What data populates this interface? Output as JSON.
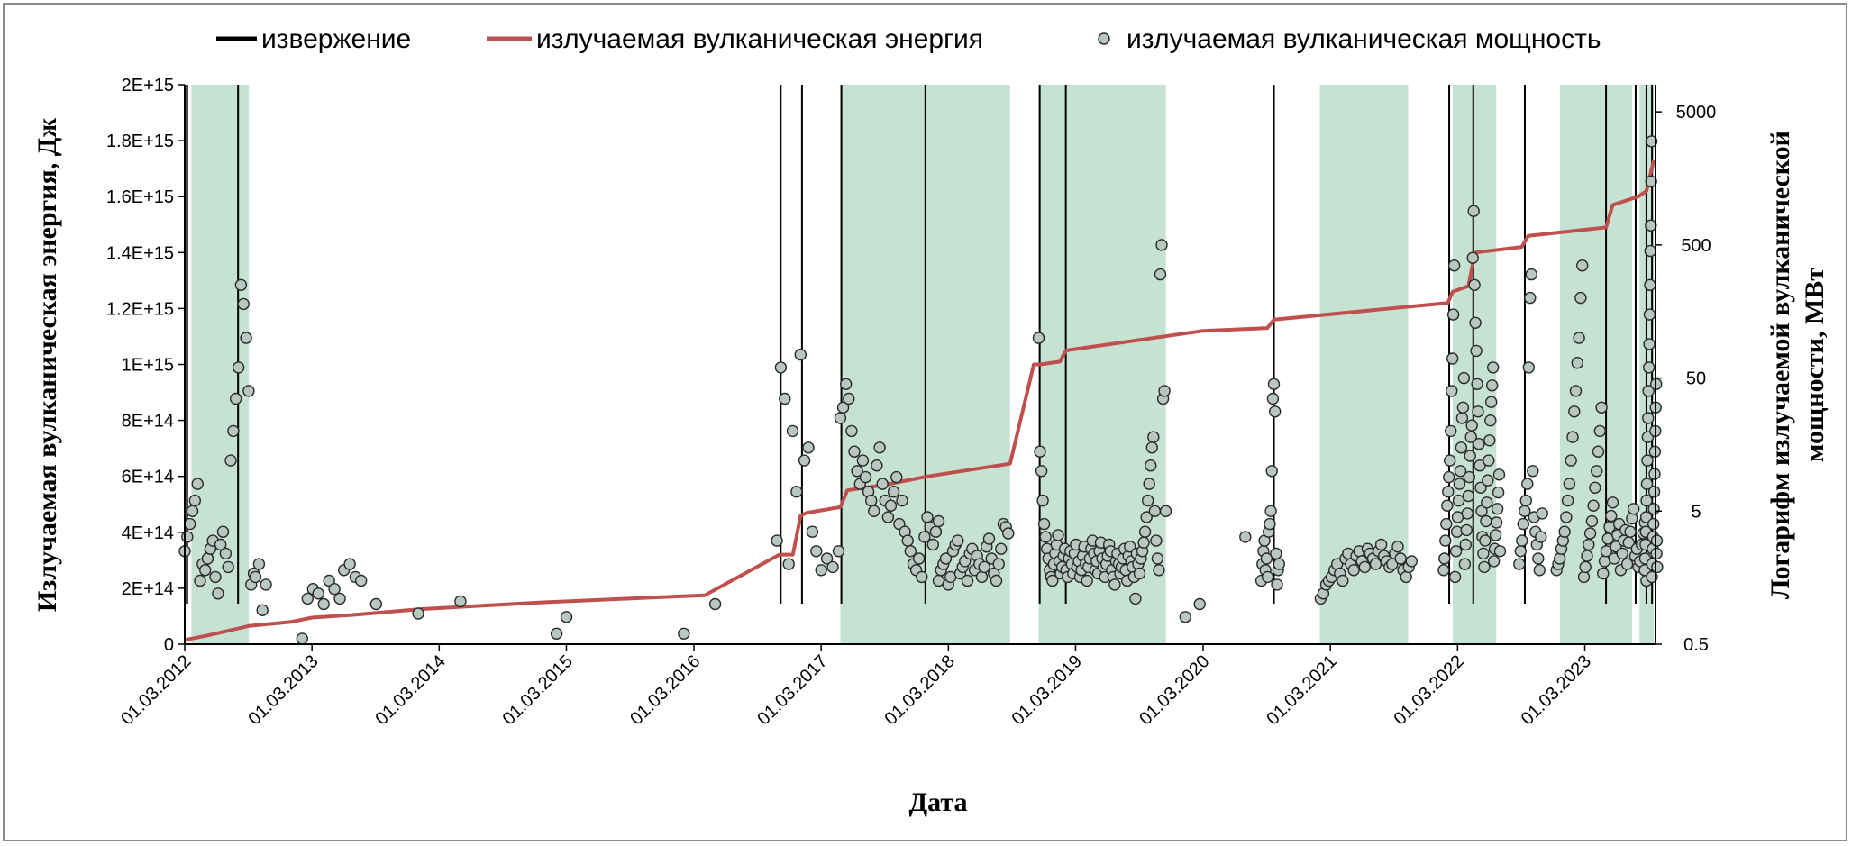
{
  "chart_data": {
    "type": "line",
    "title": "",
    "xlabel": "Дата",
    "ylabel": "Излучаемая вулканическая энергия, Дж",
    "y2label_lines": [
      "Логарифм излучаемой вулканической",
      "мощности, МВт"
    ],
    "x_ticks": [
      "01.03.2012",
      "01.03.2013",
      "01.03.2014",
      "01.03.2015",
      "01.03.2016",
      "01.03.2017",
      "01.03.2018",
      "01.03.2019",
      "01.03.2020",
      "01.03.2021",
      "01.03.2022",
      "01.03.2023"
    ],
    "y_ticks": [
      "0",
      "2E+14",
      "4E+14",
      "6E+14",
      "8E+14",
      "1E+15",
      "1.2E+15",
      "1.4E+15",
      "1.6E+15",
      "1.8E+15",
      "2E+15"
    ],
    "y2_ticks": [
      "0.5",
      "5",
      "50",
      "500",
      "5000"
    ],
    "xlim": [
      "2012-03-01",
      "2023-09-20"
    ],
    "ylim": [
      0,
      2000000000000000.0
    ],
    "y2lim": [
      0.5,
      8000
    ],
    "y2_scale": "log",
    "legend": {
      "position": "top",
      "items": [
        {
          "label": "извержение",
          "kind": "vline",
          "color": "#000000"
        },
        {
          "label": "излучаемая вулканическая энергия",
          "kind": "line",
          "color": "#c0504d"
        },
        {
          "label": "излучаемая вулканическая мощность",
          "kind": "marker",
          "color": "#b8c8c0"
        }
      ]
    },
    "colors": {
      "energy": "#c0504d",
      "eruption": "#000000",
      "period": "#c6e2d3",
      "marker_fill": "#b8c8c0",
      "marker_edge": "#2a2a2a"
    },
    "shaded_periods": [
      [
        "2012-03-20",
        "2012-09-01"
      ],
      [
        "2017-04-25",
        "2018-08-25"
      ],
      [
        "2018-11-15",
        "2019-11-15"
      ],
      [
        "2021-01-30",
        "2021-10-10"
      ],
      [
        "2022-02-15",
        "2022-06-20"
      ],
      [
        "2022-12-20",
        "2023-07-15"
      ],
      [
        "2023-08-05",
        "2023-09-15"
      ]
    ],
    "eruptions": [
      "2012-03-02",
      "2012-03-08",
      "2012-08-01",
      "2016-11-05",
      "2017-01-05",
      "2017-04-28",
      "2017-12-25",
      "2018-11-18",
      "2019-02-01",
      "2020-09-20",
      "2022-02-05",
      "2022-04-15",
      "2022-09-10",
      "2023-05-01",
      "2023-07-25",
      "2023-08-25",
      "2023-09-10"
    ],
    "energy_series": {
      "name": "излучаемая вулканическая энергия",
      "x": [
        "2012-03-01",
        "2012-05-01",
        "2012-09-01",
        "2013-01-01",
        "2013-03-01",
        "2013-07-01",
        "2014-01-01",
        "2015-01-01",
        "2016-04-01",
        "2016-11-01",
        "2016-12-10",
        "2017-01-01",
        "2017-01-20",
        "2017-04-25",
        "2017-05-15",
        "2017-09-01",
        "2018-01-01",
        "2018-08-25",
        "2018-11-01",
        "2018-11-20",
        "2019-01-15",
        "2019-02-01",
        "2020-03-01",
        "2020-09-01",
        "2020-09-20",
        "2022-02-01",
        "2022-02-15",
        "2022-04-01",
        "2022-04-20",
        "2022-09-01",
        "2022-09-20",
        "2023-05-01",
        "2023-05-20",
        "2023-08-01",
        "2023-08-25",
        "2023-09-15"
      ],
      "y": [
        15000000000000.0,
        30000000000000.0,
        65000000000000.0,
        80000000000000.0,
        95000000000000.0,
        105000000000000.0,
        125000000000000.0,
        150000000000000.0,
        175000000000000.0,
        320000000000000.0,
        320000000000000.0,
        460000000000000.0,
        470000000000000.0,
        490000000000000.0,
        550000000000000.0,
        570000000000000.0,
        600000000000000.0,
        645000000000000.0,
        1000000000000000.0,
        1000000000000000.0,
        1010000000000000.0,
        1050000000000000.0,
        1120000000000000.0,
        1130000000000000.0,
        1160000000000000.0,
        1220000000000000.0,
        1260000000000000.0,
        1280000000000000.0,
        1400000000000000.0,
        1420000000000000.0,
        1460000000000000.0,
        1490000000000000.0,
        1570000000000000.0,
        1600000000000000.0,
        1620000000000000.0,
        1730000000000000.0
      ]
    },
    "power_series": {
      "name": "излучаемая вулканическая мощность",
      "clusters": [
        {
          "start": "2012-03-01",
          "end": "2012-09-15",
          "mw": [
            2.5,
            3.2,
            4.0,
            5.0,
            6.0,
            8.0,
            1.5,
            2.0,
            1.8,
            2.2,
            2.6,
            3.0,
            1.6,
            1.2,
            2.8,
            3.5,
            2.4,
            1.9,
            12,
            20,
            35,
            60,
            250,
            180,
            100,
            40,
            1.4,
            1.7
          ]
        },
        {
          "start": "2012-09-20",
          "end": "2012-10-20",
          "mw": [
            1.6,
            2.0,
            0.9,
            1.4
          ]
        },
        {
          "start": "2013-02-01",
          "end": "2013-05-20",
          "mw": [
            0.55,
            1.1,
            1.3,
            1.2,
            1.0,
            1.5,
            1.3,
            1.1
          ]
        },
        {
          "start": "2013-06-01",
          "end": "2013-07-20",
          "mw": [
            1.8,
            2.0,
            1.6,
            1.5
          ]
        },
        {
          "start": "2013-09-01",
          "end": "2014-05-01",
          "mw": [
            1.0,
            0.85,
            1.05
          ]
        },
        {
          "start": "2015-02-01",
          "end": "2015-03-01",
          "mw": [
            0.6,
            0.8
          ]
        },
        {
          "start": "2016-02-01",
          "end": "2016-05-01",
          "mw": [
            0.6,
            1.0
          ]
        },
        {
          "start": "2016-10-25",
          "end": "2017-02-15",
          "mw": [
            3.0,
            60,
            35,
            2.0,
            20,
            7.0,
            75,
            12,
            15,
            3.5,
            2.5
          ]
        },
        {
          "start": "2017-03-01",
          "end": "2017-04-20",
          "mw": [
            1.8,
            2.2,
            1.9,
            2.5
          ]
        },
        {
          "start": "2017-04-25",
          "end": "2018-02-01",
          "mw": [
            25,
            30,
            45,
            35,
            20,
            14,
            10,
            8,
            12,
            9,
            7,
            6,
            5,
            11,
            15,
            8,
            6,
            4.5,
            5.5,
            7,
            9,
            4,
            6,
            3.5,
            3,
            2.5,
            2,
            1.8,
            2.2,
            1.6,
            3.2,
            4.5,
            3.8,
            2.8,
            3.5,
            4.2
          ]
        },
        {
          "start": "2018-02-01",
          "end": "2018-08-20",
          "mw": [
            1.5,
            1.8,
            2.0,
            2.2,
            1.4,
            1.6,
            2.5,
            2.8,
            3.0,
            1.7,
            1.9,
            2.1,
            1.5,
            2.4,
            2.6,
            1.8,
            2.3,
            2.0,
            1.6,
            1.9,
            2.7,
            3.1,
            2.2,
            1.7,
            1.5,
            2.0,
            2.6,
            4.0,
            3.8,
            3.4
          ]
        },
        {
          "start": "2018-11-15",
          "end": "2019-11-15",
          "mw": [
            100,
            14,
            10,
            6,
            4,
            3.2,
            2.6,
            2.2,
            1.8,
            1.6,
            1.5,
            2.0,
            2.4,
            2.8,
            3.3,
            2.1,
            1.7,
            1.9,
            2.3,
            2.6,
            1.8,
            1.6,
            2.2,
            2.5,
            2.0,
            1.7,
            2.4,
            2.8,
            1.9,
            2.1,
            1.6,
            1.8,
            2.3,
            2.7,
            2.0,
            1.5,
            1.9,
            2.2,
            2.6,
            3.0,
            2.4,
            1.8,
            2.1,
            1.7,
            2.5,
            2.9,
            2.2,
            1.9,
            1.6,
            2.0,
            2.3,
            2.8,
            2.5,
            1.8,
            1.6,
            1.4,
            2.1,
            2.4,
            2.0,
            1.7,
            1.9,
            2.2,
            2.6,
            1.8,
            1.5,
            2.3,
            2.7,
            2.1,
            1.9,
            1.6,
            1.1,
            2.4,
            2.0,
            1.7,
            2.2,
            2.5,
            2.9,
            3.5,
            4.5,
            6,
            8,
            11,
            15,
            18,
            5,
            3,
            2.2,
            1.8,
            300,
            500,
            35,
            40,
            5
          ]
        },
        {
          "start": "2020-01-10",
          "end": "2020-02-20",
          "mw": [
            0.8,
            1.0
          ]
        },
        {
          "start": "2020-06-15",
          "end": "2020-07-15",
          "mw": [
            3.2
          ]
        },
        {
          "start": "2020-08-15",
          "end": "2020-10-05",
          "mw": [
            1.5,
            2.0,
            2.5,
            3.0,
            1.8,
            2.2,
            1.6,
            3.5,
            4.0,
            5.0,
            10,
            35,
            45,
            28,
            2.4,
            1.4,
            1.8,
            2.0
          ]
        },
        {
          "start": "2021-02-01",
          "end": "2021-10-20",
          "mw": [
            1.1,
            1.2,
            1.4,
            1.5,
            1.6,
            1.8,
            2.0,
            1.7,
            1.5,
            2.2,
            2.4,
            2.0,
            1.8,
            2.3,
            2.5,
            2.1,
            1.9,
            2.6,
            2.4,
            2.2,
            2.0,
            2.5,
            2.8,
            2.3,
            2.1,
            1.9,
            2.0,
            2.4,
            2.7,
            2.2,
            1.8,
            1.6,
            1.9,
            2.1
          ]
        },
        {
          "start": "2022-01-20",
          "end": "2022-07-01",
          "mw": [
            1.8,
            2.2,
            3.0,
            4.0,
            5.5,
            7.0,
            9.0,
            12,
            20,
            40,
            70,
            150,
            350,
            1.6,
            2.5,
            3.5,
            4.5,
            6.0,
            8.0,
            10,
            15,
            25,
            30,
            50,
            2.0,
            2.8,
            3.6,
            4.8,
            6.5,
            9.0,
            13,
            18,
            22,
            400,
            900,
            250,
            130,
            80,
            45,
            28,
            16,
            11,
            7.5,
            5.0,
            3.2,
            2.4,
            1.9,
            3.0,
            4.2,
            5.8,
            8.5,
            12,
            17,
            24,
            33,
            44,
            60,
            2.1,
            2.6,
            3.3,
            4.1,
            5.2,
            6.9,
            9.4,
            2.5
          ]
        },
        {
          "start": "2022-08-25",
          "end": "2022-10-30",
          "mw": [
            2.0,
            2.5,
            3.0,
            4.0,
            5.0,
            6.0,
            8.0,
            60,
            200,
            300,
            10,
            4.5,
            3.5,
            2.8,
            2.2,
            1.8,
            3.2,
            4.8
          ]
        },
        {
          "start": "2022-12-10",
          "end": "2023-08-25",
          "mw": [
            1.8,
            2.0,
            2.2,
            2.6,
            3.0,
            3.5,
            4.5,
            6.0,
            8.0,
            12,
            18,
            28,
            40,
            65,
            100,
            200,
            350,
            1.6,
            1.9,
            2.3,
            2.8,
            3.4,
            4.2,
            5.5,
            7.5,
            10,
            14,
            20,
            30,
            1.7,
            2.1,
            2.5,
            3.1,
            3.8,
            4.6,
            5.8,
            2.2,
            2.7,
            3.3,
            4.0,
            1.8,
            2.4,
            3.0,
            3.6,
            2.0,
            2.9,
            3.5,
            4.4,
            5.2,
            2.3,
            2.6,
            1.9,
            2.1,
            2.8,
            3.4,
            4.1,
            1.5
          ]
        },
        {
          "start": "2023-08-20",
          "end": "2023-09-25",
          "mw": [
            1.8,
            2.2,
            2.8,
            3.5,
            4.5,
            6.0,
            8.0,
            12,
            18,
            25,
            40,
            60,
            90,
            150,
            250,
            450,
            700,
            1500,
            3000,
            1.6,
            2.0,
            2.6,
            3.2,
            4.0,
            5.2,
            7.0,
            9.5,
            14,
            20,
            30,
            45,
            2.4,
            3.0,
            1.9
          ]
        }
      ]
    }
  }
}
